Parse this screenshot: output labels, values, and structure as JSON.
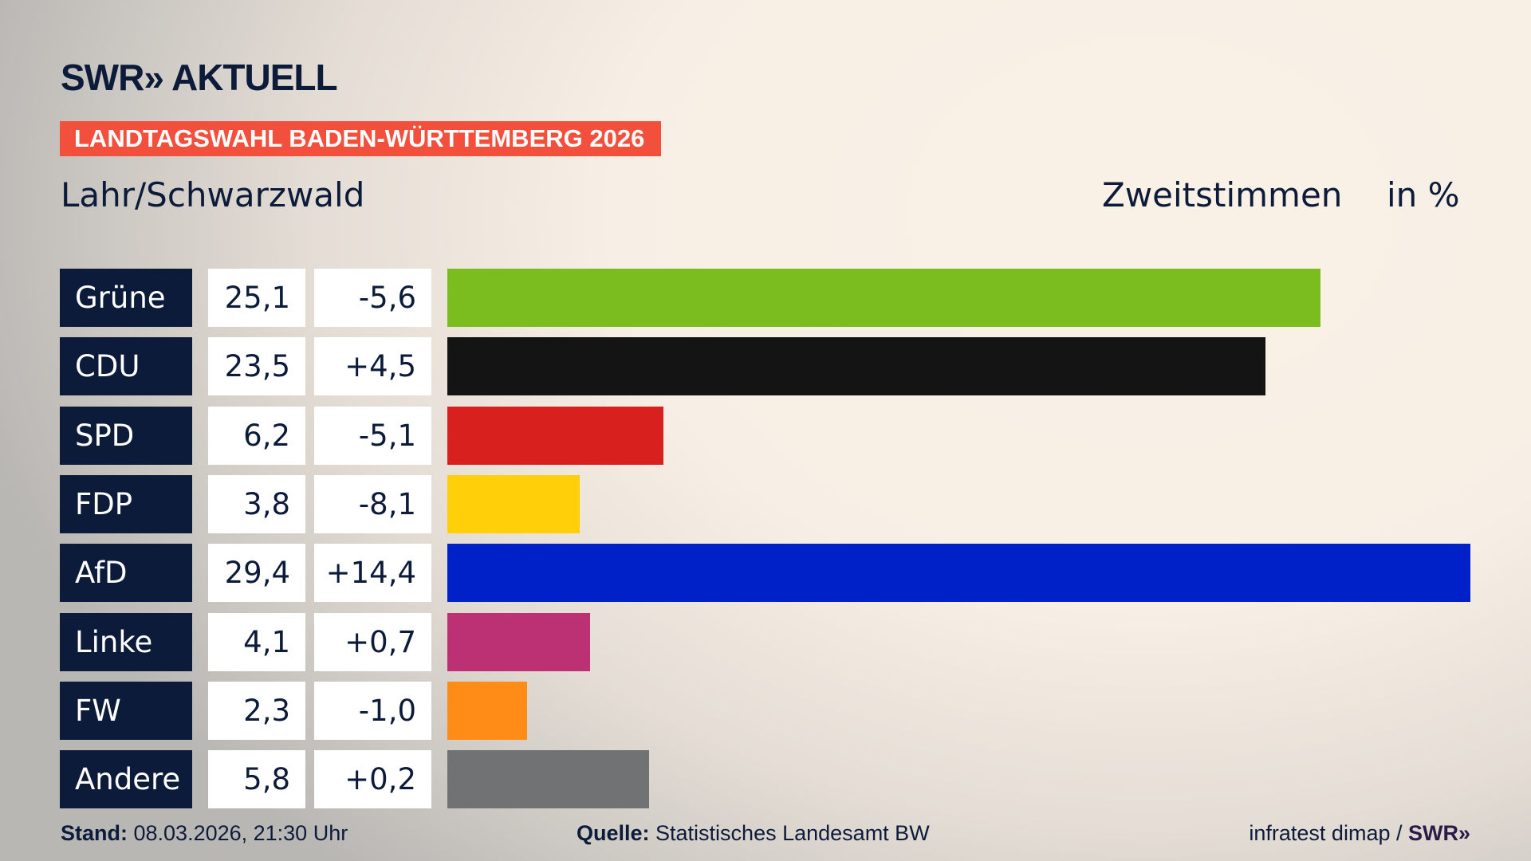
{
  "header": {
    "logo_text": "SWR» AKTUELL",
    "banner": "LANDTAGSWAHL BADEN-WÜRTTEMBERG 2026",
    "region": "Lahr/Schwarzwald",
    "measure": "Zweitstimmen",
    "unit": "in %"
  },
  "chart_data": {
    "type": "bar",
    "orientation": "horizontal",
    "title": "Zweitstimmen",
    "unit": "in %",
    "categories": [
      "Grüne",
      "CDU",
      "SPD",
      "FDP",
      "AfD",
      "Linke",
      "FW",
      "Andere"
    ],
    "values": [
      25.1,
      23.5,
      6.2,
      3.8,
      29.4,
      4.1,
      2.3,
      5.8
    ],
    "value_labels": [
      "25,1",
      "23,5",
      "6,2",
      "3,8",
      "29,4",
      "4,1",
      "2,3",
      "5,8"
    ],
    "diff_labels": [
      "-5,6",
      "+4,5",
      "-5,1",
      "-8,1",
      "+14,4",
      "+0,7",
      "-1,0",
      "+0,2"
    ],
    "colors": [
      "#7bbd1f",
      "#141414",
      "#d8201f",
      "#ffd00a",
      "#0021c8",
      "#bb3174",
      "#ff8c17",
      "#717274"
    ],
    "xlim": [
      0,
      29.4
    ],
    "grid": false
  },
  "footer": {
    "stand_label": "Stand:",
    "stand_value": " 08.03.2026, 21:30 Uhr",
    "source_label": "Quelle:",
    "source_value": " Statistisches Landesamt BW",
    "credit": "infratest dimap / ",
    "credit_logo": "SWR»"
  }
}
